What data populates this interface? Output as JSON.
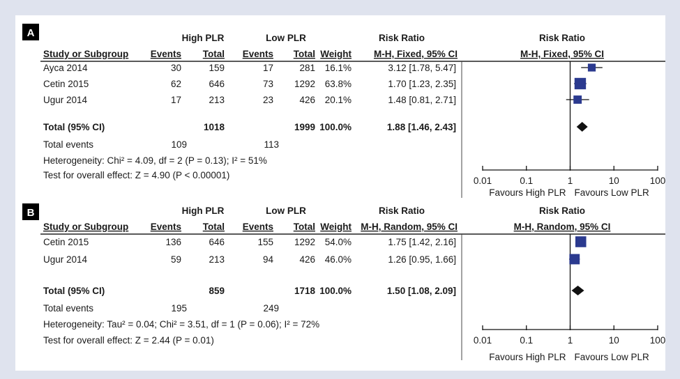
{
  "chart_data": [
    {
      "type": "forest",
      "panel_label": "A",
      "header": {
        "group1": "High PLR",
        "group2": "Low PLR",
        "effect": "Risk Ratio",
        "plot_title": "Risk Ratio",
        "study_col": "Study or Subgroup",
        "events": "Events",
        "total": "Total",
        "weight": "Weight",
        "method": "M-H, Fixed, 95% CI",
        "plot_method": "M-H, Fixed, 95% CI"
      },
      "studies": [
        {
          "name": "Ayca 2014",
          "events1": "30",
          "total1": "159",
          "events2": "17",
          "total2": "281",
          "weight": "16.1%",
          "ci_text": "3.12 [1.78, 5.47]",
          "rr": 3.12,
          "lo": 1.78,
          "hi": 5.47,
          "w": 16.1
        },
        {
          "name": "Cetin 2015",
          "events1": "62",
          "total1": "646",
          "events2": "73",
          "total2": "1292",
          "weight": "63.8%",
          "ci_text": "1.70 [1.23, 2.35]",
          "rr": 1.7,
          "lo": 1.23,
          "hi": 2.35,
          "w": 63.8
        },
        {
          "name": "Ugur 2014",
          "events1": "17",
          "total1": "213",
          "events2": "23",
          "total2": "426",
          "weight": "20.1%",
          "ci_text": "1.48 [0.81, 2.71]",
          "rr": 1.48,
          "lo": 0.81,
          "hi": 2.71,
          "w": 20.1
        }
      ],
      "total": {
        "label": "Total (95% CI)",
        "total1": "1018",
        "total2": "1999",
        "weight": "100.0%",
        "ci_text": "1.88 [1.46, 2.43]",
        "rr": 1.88,
        "lo": 1.46,
        "hi": 2.43
      },
      "total_events": {
        "label": "Total events",
        "events1": "109",
        "events2": "113"
      },
      "heterogeneity": "Heterogeneity: Chi² = 4.09, df = 2 (P = 0.13); I² = 51%",
      "overall_effect": "Test for overall effect: Z = 4.90 (P < 0.00001)",
      "axis": {
        "type": "log",
        "ticks": [
          0.01,
          0.1,
          1,
          10,
          100
        ],
        "tick_labels": [
          "0.01",
          "0.1",
          "1",
          "10",
          "100"
        ],
        "left_label": "Favours High PLR",
        "right_label": "Favours Low PLR"
      },
      "colors": {
        "marker": "#2b3a8f",
        "diamond": "#111111"
      }
    },
    {
      "type": "forest",
      "panel_label": "B",
      "header": {
        "group1": "High PLR",
        "group2": "Low PLR",
        "effect": "Risk Ratio",
        "plot_title": "Risk Ratio",
        "study_col": "Study or Subgroup",
        "events": "Events",
        "total": "Total",
        "weight": "Weight",
        "method": "M-H, Random, 95% CI",
        "plot_method": "M-H, Random, 95% CI"
      },
      "studies": [
        {
          "name": "Cetin 2015",
          "events1": "136",
          "total1": "646",
          "events2": "155",
          "total2": "1292",
          "weight": "54.0%",
          "ci_text": "1.75 [1.42, 2.16]",
          "rr": 1.75,
          "lo": 1.42,
          "hi": 2.16,
          "w": 54.0
        },
        {
          "name": "Ugur 2014",
          "events1": "59",
          "total1": "213",
          "events2": "94",
          "total2": "426",
          "weight": "46.0%",
          "ci_text": "1.26 [0.95, 1.66]",
          "rr": 1.26,
          "lo": 0.95,
          "hi": 1.66,
          "w": 46.0
        }
      ],
      "total": {
        "label": "Total (95% CI)",
        "total1": "859",
        "total2": "1718",
        "weight": "100.0%",
        "ci_text": "1.50 [1.08, 2.09]",
        "rr": 1.5,
        "lo": 1.08,
        "hi": 2.09
      },
      "total_events": {
        "label": "Total events",
        "events1": "195",
        "events2": "249"
      },
      "heterogeneity": "Heterogeneity: Tau² = 0.04; Chi² = 3.51, df = 1 (P = 0.06); I² = 72%",
      "overall_effect": "Test for overall effect: Z = 2.44 (P = 0.01)",
      "axis": {
        "type": "log",
        "ticks": [
          0.01,
          0.1,
          1,
          10,
          100
        ],
        "tick_labels": [
          "0.01",
          "0.1",
          "1",
          "10",
          "100"
        ],
        "left_label": "Favours High PLR",
        "right_label": "Favours Low PLR"
      },
      "colors": {
        "marker": "#2b3a8f",
        "diamond": "#111111"
      }
    }
  ]
}
